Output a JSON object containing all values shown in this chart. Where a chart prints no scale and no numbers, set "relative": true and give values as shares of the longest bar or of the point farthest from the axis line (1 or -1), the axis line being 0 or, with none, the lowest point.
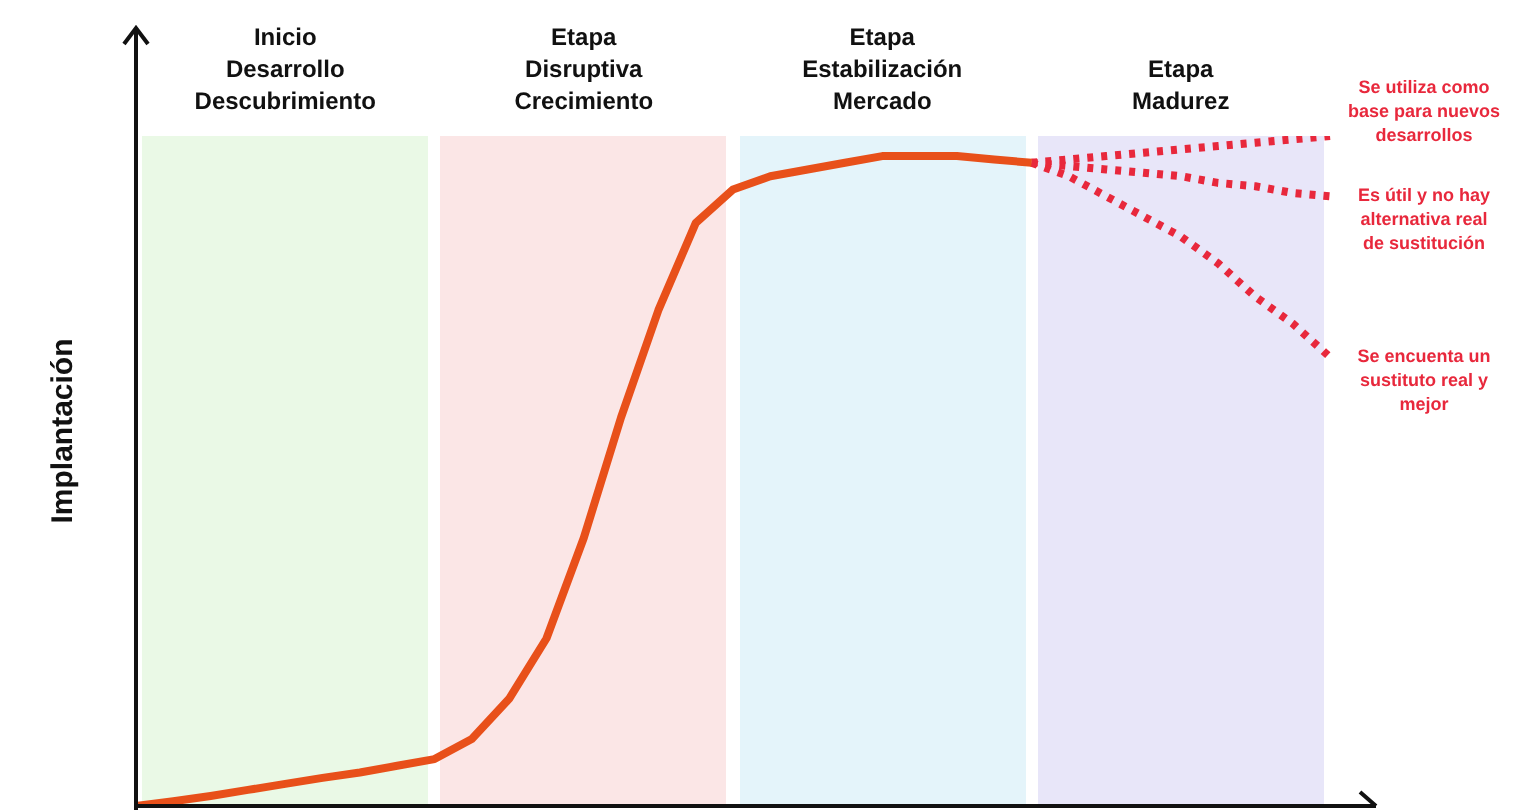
{
  "chart_data": {
    "type": "line",
    "relative": true,
    "ylabel": "Implantación",
    "marker": "none",
    "categories": [
      null,
      null,
      null,
      null,
      null,
      null,
      null,
      null,
      null,
      null,
      null,
      null,
      null,
      null,
      null,
      null,
      null,
      null,
      null,
      null,
      null,
      null,
      null,
      null,
      null,
      null,
      null,
      null,
      null,
      null,
      null,
      null,
      null
    ],
    "series": [
      {
        "color": "#e8501a",
        "line_style": "solid",
        "values": [
          0,
          0.007,
          0.015,
          0.024,
          0.033,
          0.042,
          0.05,
          0.06,
          0.07,
          0.1,
          0.16,
          0.25,
          0.4,
          0.58,
          0.74,
          0.87,
          0.92,
          0.94,
          0.95,
          0.96,
          0.97,
          0.97,
          0.97,
          0.965,
          0.96,
          null,
          null,
          null,
          null,
          null,
          null,
          null,
          null
        ]
      },
      {
        "color": "#e8283c",
        "line_style": "dotted",
        "values": [
          null,
          null,
          null,
          null,
          null,
          null,
          null,
          null,
          null,
          null,
          null,
          null,
          null,
          null,
          null,
          null,
          null,
          null,
          null,
          null,
          null,
          null,
          null,
          null,
          0.96,
          0.965,
          0.97,
          0.975,
          0.98,
          0.985,
          0.99,
          0.995,
          1.0
        ]
      },
      {
        "color": "#e8283c",
        "line_style": "dotted",
        "values": [
          null,
          null,
          null,
          null,
          null,
          null,
          null,
          null,
          null,
          null,
          null,
          null,
          null,
          null,
          null,
          null,
          null,
          null,
          null,
          null,
          null,
          null,
          null,
          null,
          0.96,
          0.955,
          0.95,
          0.945,
          0.94,
          0.93,
          0.925,
          0.915,
          0.91
        ]
      },
      {
        "color": "#e8283c",
        "line_style": "dotted",
        "values": [
          null,
          null,
          null,
          null,
          null,
          null,
          null,
          null,
          null,
          null,
          null,
          null,
          null,
          null,
          null,
          null,
          null,
          null,
          null,
          null,
          null,
          null,
          null,
          null,
          0.96,
          0.94,
          0.91,
          0.88,
          0.85,
          0.81,
          0.76,
          0.72,
          0.67
        ]
      }
    ],
    "annotations": [
      "Inicio\nDesarrollo\nDescubrimiento",
      "Etapa\nDisruptiva\nCrecimiento",
      "Etapa\nEstabilización\nMercado",
      "Etapa\nMadurez",
      "Se utiliza como\nbase para nuevos\ndesarrollos",
      "Es útil y no hay\nalternativa real\nde sustitución",
      "Se encuenta un\nsustituto real y\nmejor"
    ]
  }
}
